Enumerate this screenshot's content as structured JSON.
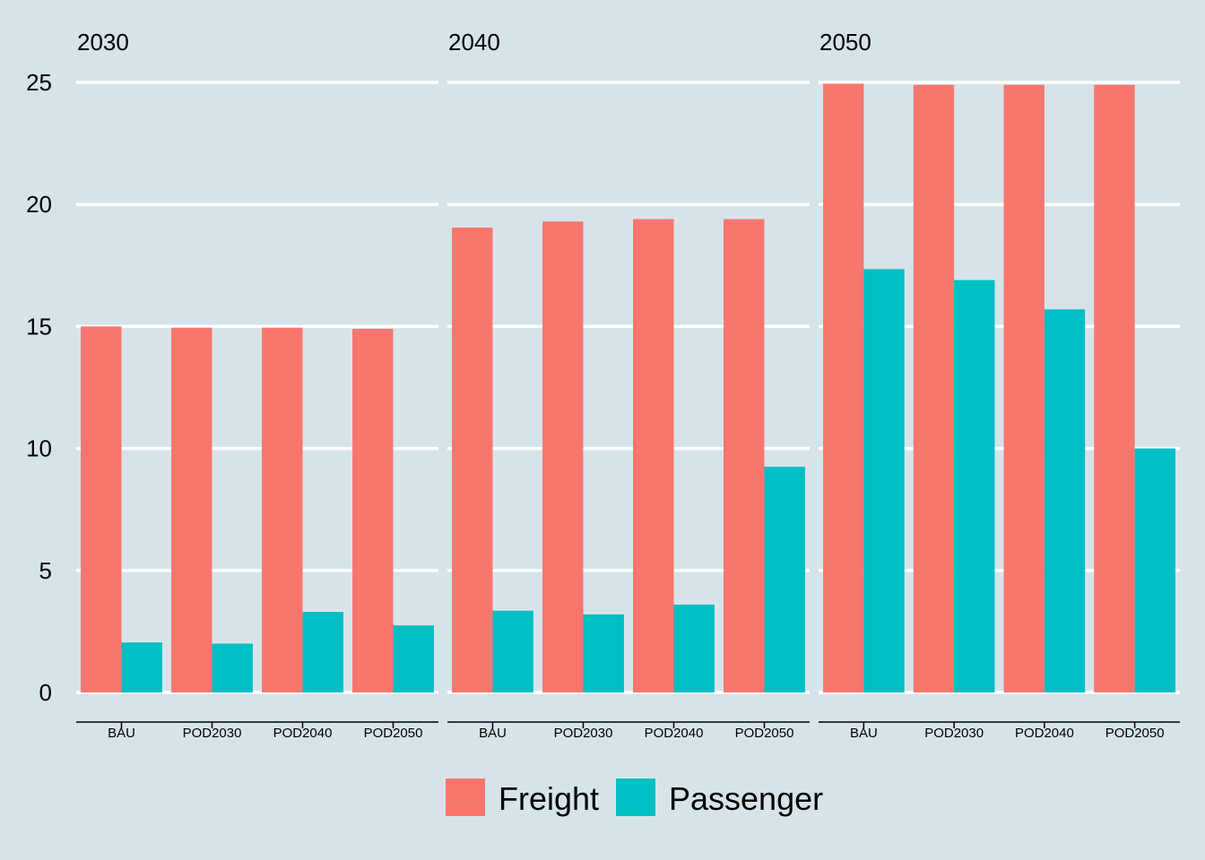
{
  "chart_data": {
    "type": "bar",
    "title": "",
    "xlabel": "",
    "ylabel": "",
    "ylim": [
      0,
      25
    ],
    "yticks": [
      0,
      5,
      10,
      15,
      20,
      25
    ],
    "categories": [
      "BAU",
      "POD2030",
      "POD2040",
      "POD2050"
    ],
    "legend_position": "bottom",
    "grid": "horizontal major lines",
    "series": [
      {
        "name": "Freight",
        "color": "#f8766d"
      },
      {
        "name": "Passenger",
        "color": "#00bfc4"
      }
    ],
    "panels": [
      {
        "label": "2030",
        "values": {
          "Freight": [
            15.0,
            14.95,
            14.95,
            14.9
          ],
          "Passenger": [
            2.05,
            2.0,
            3.3,
            2.75
          ]
        }
      },
      {
        "label": "2040",
        "values": {
          "Freight": [
            19.05,
            19.3,
            19.4,
            19.4
          ],
          "Passenger": [
            3.35,
            3.2,
            3.6,
            9.25
          ]
        }
      },
      {
        "label": "2050",
        "values": {
          "Freight": [
            24.95,
            24.9,
            24.9,
            24.9
          ],
          "Passenger": [
            17.35,
            16.9,
            15.7,
            10.0
          ]
        }
      }
    ]
  }
}
